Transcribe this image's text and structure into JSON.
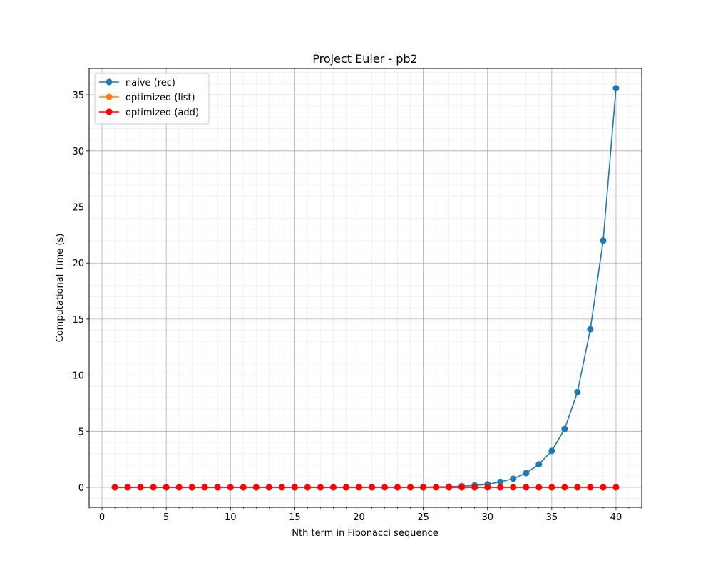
{
  "chart_data": {
    "type": "line",
    "title": "Project Euler - pb2",
    "xlabel": "Nth term in Fibonacci sequence",
    "ylabel": "Computational Time (s)",
    "xlim": [
      -1,
      42
    ],
    "ylim": [
      -1.78,
      37.36
    ],
    "x_ticks": [
      0,
      5,
      10,
      15,
      20,
      25,
      30,
      35,
      40
    ],
    "y_ticks": [
      0,
      5,
      10,
      15,
      20,
      25,
      30,
      35
    ],
    "grid": "major and minor",
    "legend_position": "upper left",
    "x": [
      1,
      2,
      3,
      4,
      5,
      6,
      7,
      8,
      9,
      10,
      11,
      12,
      13,
      14,
      15,
      16,
      17,
      18,
      19,
      20,
      21,
      22,
      23,
      24,
      25,
      26,
      27,
      28,
      29,
      30,
      31,
      32,
      33,
      34,
      35,
      36,
      37,
      38,
      39,
      40
    ],
    "series": [
      {
        "name": "naive (rec)",
        "color": "#1f77b4",
        "values": [
          0,
          0,
          0,
          0,
          0,
          0,
          0,
          0,
          0,
          0,
          0,
          0,
          0,
          0,
          0,
          0,
          0,
          0,
          0,
          0.01,
          0.01,
          0.01,
          0.01,
          0.01,
          0.02,
          0.04,
          0.06,
          0.1,
          0.17,
          0.27,
          0.49,
          0.77,
          1.27,
          2.05,
          3.25,
          5.2,
          8.5,
          14.1,
          22.0,
          35.6
        ]
      },
      {
        "name": "optimized (list)",
        "color": "#ff7f0e",
        "values": [
          0,
          0,
          0,
          0,
          0,
          0,
          0,
          0,
          0,
          0,
          0,
          0,
          0,
          0,
          0,
          0,
          0,
          0,
          0,
          0,
          0,
          0,
          0,
          0,
          0,
          0,
          0,
          0,
          0,
          0,
          0,
          0,
          0,
          0,
          0,
          0,
          0,
          0,
          0,
          0
        ]
      },
      {
        "name": "optimized (add)",
        "color": "#ff0000",
        "values": [
          0,
          0,
          0,
          0,
          0,
          0,
          0,
          0,
          0,
          0,
          0,
          0,
          0,
          0,
          0,
          0,
          0,
          0,
          0,
          0,
          0,
          0,
          0,
          0,
          0,
          0,
          0,
          0,
          0,
          0,
          0,
          0,
          0,
          0,
          0,
          0,
          0,
          0,
          0,
          0
        ]
      }
    ]
  }
}
